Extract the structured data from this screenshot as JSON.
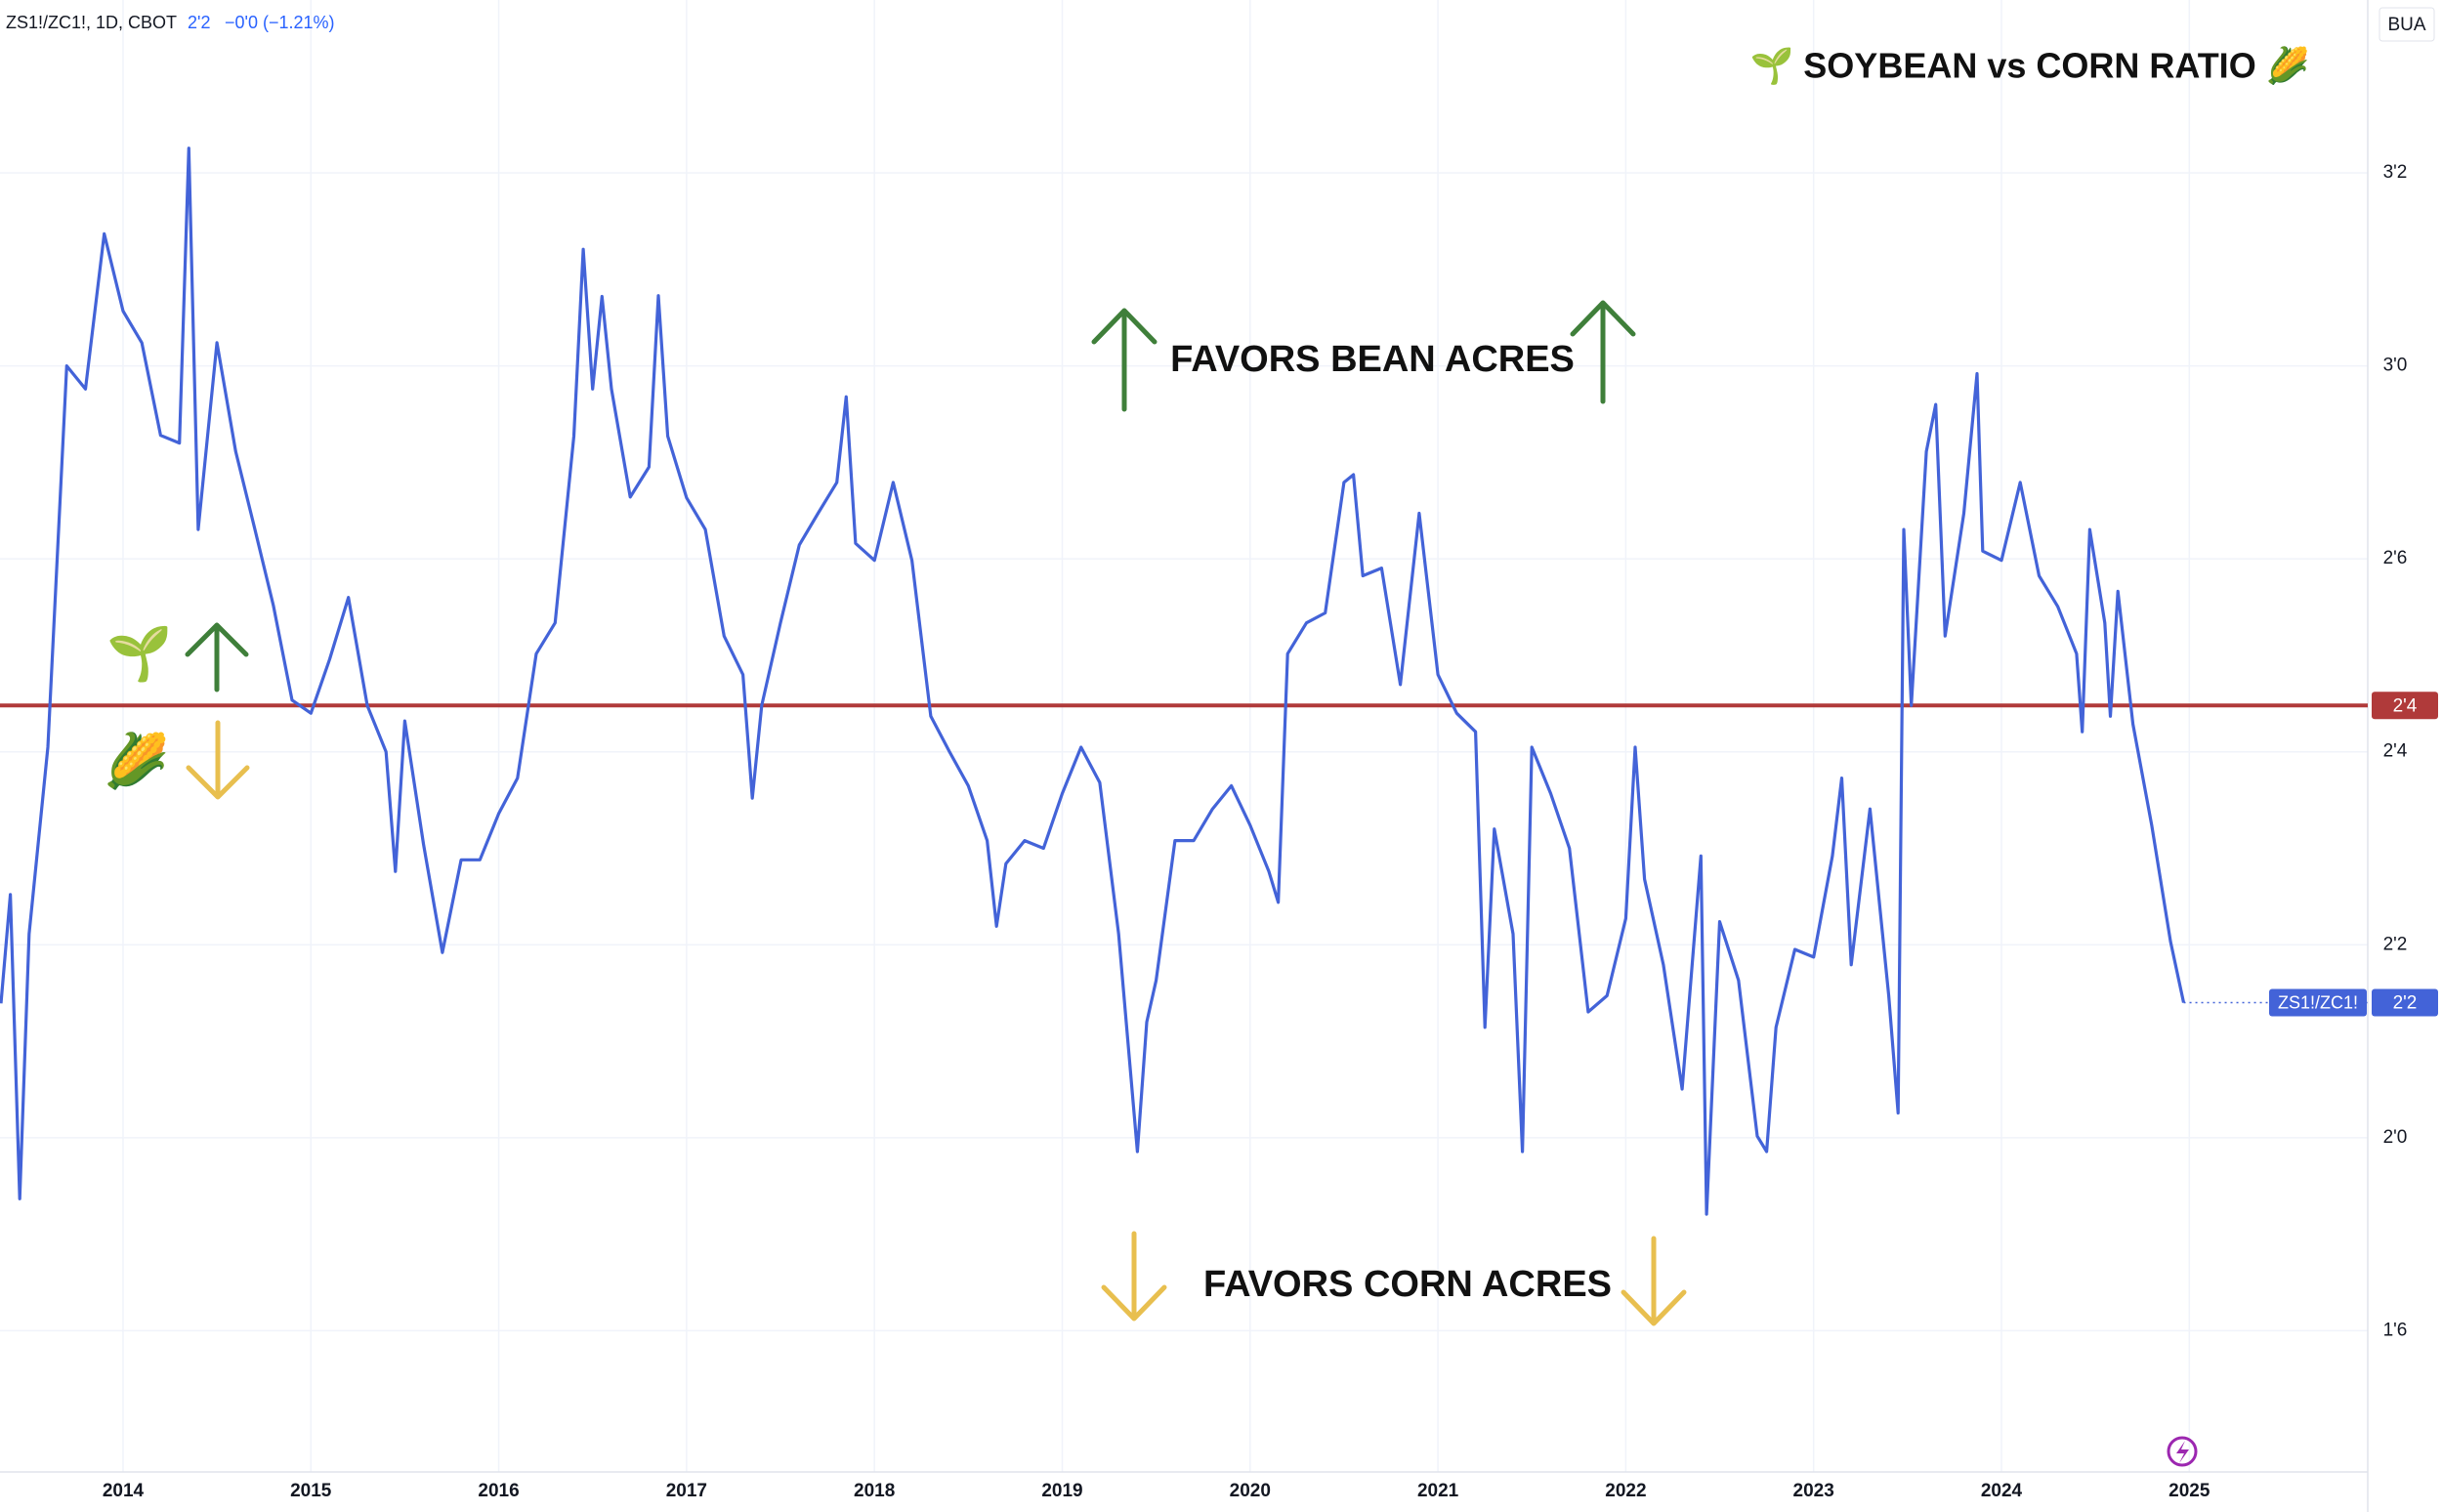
{
  "chart_data": {
    "type": "line",
    "title": "🌱 SOYBEAN vs CORN RATIO 🌽",
    "header": {
      "symbol_info": "ZS1!/ZC1!, 1D, CBOT",
      "change": "−0'0 (−1.21%)"
    },
    "badge": "BUA",
    "symbol": "ZS1!/ZC1!",
    "annotations": {
      "bean": "FAVORS BEAN ACRES",
      "corn": "FAVORS CORN ACRES",
      "bean_icon": "🌱",
      "corn_icon": "🌽"
    },
    "color": "#4363d8",
    "grid": true,
    "xlim": [
      2013.345,
      2025.95
    ],
    "ylim": [
      1.567,
      3.474
    ],
    "xticks": [
      2014,
      2015,
      2016,
      2017,
      2018,
      2019,
      2020,
      2021,
      2022,
      2023,
      2024,
      2025
    ],
    "yticks": [
      {
        "value": 1.75,
        "label": "1'6"
      },
      {
        "value": 2.0,
        "label": "2'0"
      },
      {
        "value": 2.25,
        "label": "2'2"
      },
      {
        "value": 2.5,
        "label": "2'4"
      },
      {
        "value": 2.75,
        "label": "2'6"
      },
      {
        "value": 3.0,
        "label": "3'0"
      },
      {
        "value": 3.25,
        "label": "3'2"
      }
    ],
    "reference_line": {
      "value": 2.56,
      "label": "2'4",
      "color": "#b03a3a"
    },
    "last_price": {
      "value": 2.175,
      "label": "2'2"
    },
    "x": [
      2013.35,
      2013.4,
      2013.45,
      2013.5,
      2013.6,
      2013.7,
      2013.8,
      2013.9,
      2014.0,
      2014.1,
      2014.2,
      2014.3,
      2014.35,
      2014.4,
      2014.5,
      2014.6,
      2014.7,
      2014.8,
      2014.9,
      2015.0,
      2015.1,
      2015.2,
      2015.3,
      2015.4,
      2015.45,
      2015.5,
      2015.6,
      2015.7,
      2015.8,
      2015.9,
      2016.0,
      2016.1,
      2016.2,
      2016.3,
      2016.4,
      2016.45,
      2016.5,
      2016.55,
      2016.6,
      2016.7,
      2016.8,
      2016.85,
      2016.9,
      2017.0,
      2017.1,
      2017.2,
      2017.3,
      2017.35,
      2017.4,
      2017.5,
      2017.6,
      2017.7,
      2017.8,
      2017.85,
      2017.9,
      2018.0,
      2018.1,
      2018.2,
      2018.3,
      2018.4,
      2018.5,
      2018.6,
      2018.65,
      2018.7,
      2018.8,
      2018.9,
      2019.0,
      2019.1,
      2019.2,
      2019.3,
      2019.4,
      2019.45,
      2019.5,
      2019.6,
      2019.7,
      2019.8,
      2019.9,
      2020.0,
      2020.1,
      2020.15,
      2020.2,
      2020.3,
      2020.4,
      2020.5,
      2020.55,
      2020.6,
      2020.7,
      2020.8,
      2020.9,
      2021.0,
      2021.1,
      2021.2,
      2021.25,
      2021.3,
      2021.4,
      2021.45,
      2021.5,
      2021.6,
      2021.7,
      2021.8,
      2021.9,
      2022.0,
      2022.05,
      2022.1,
      2022.2,
      2022.3,
      2022.4,
      2022.43,
      2022.5,
      2022.6,
      2022.7,
      2022.75,
      2022.8,
      2022.9,
      2023.0,
      2023.1,
      2023.15,
      2023.2,
      2023.3,
      2023.4,
      2023.45,
      2023.48,
      2023.52,
      2023.6,
      2023.65,
      2023.7,
      2023.8,
      2023.87,
      2023.9,
      2024.0,
      2024.1,
      2024.2,
      2024.3,
      2024.4,
      2024.43,
      2024.47,
      2024.55,
      2024.58,
      2024.62,
      2024.7,
      2024.8,
      2024.9,
      2024.97
    ],
    "values": [
      2.174,
      2.315,
      1.921,
      2.264,
      2.506,
      3.0,
      2.97,
      3.171,
      3.071,
      3.03,
      2.91,
      2.9,
      3.282,
      2.788,
      3.03,
      2.889,
      2.79,
      2.69,
      2.567,
      2.55,
      2.62,
      2.7,
      2.56,
      2.5,
      2.345,
      2.54,
      2.38,
      2.24,
      2.36,
      2.36,
      2.42,
      2.466,
      2.627,
      2.667,
      2.909,
      3.151,
      2.97,
      3.09,
      2.97,
      2.83,
      2.869,
      3.091,
      2.909,
      2.829,
      2.788,
      2.65,
      2.6,
      2.44,
      2.56,
      2.667,
      2.768,
      2.809,
      2.849,
      2.96,
      2.77,
      2.748,
      2.849,
      2.748,
      2.546,
      2.5,
      2.456,
      2.385,
      2.274,
      2.355,
      2.385,
      2.375,
      2.446,
      2.506,
      2.46,
      2.264,
      1.982,
      2.15,
      2.204,
      2.385,
      2.385,
      2.426,
      2.456,
      2.405,
      2.345,
      2.305,
      2.627,
      2.667,
      2.68,
      2.849,
      2.859,
      2.728,
      2.738,
      2.587,
      2.809,
      2.6,
      2.55,
      2.526,
      2.143,
      2.4,
      2.264,
      1.982,
      2.506,
      2.446,
      2.375,
      2.163,
      2.184,
      2.284,
      2.506,
      2.335,
      2.224,
      2.063,
      2.365,
      1.901,
      2.28,
      2.204,
      2.002,
      1.982,
      2.143,
      2.244,
      2.234,
      2.365,
      2.466,
      2.224,
      2.426,
      2.184,
      2.032,
      2.788,
      2.56,
      2.889,
      2.95,
      2.65,
      2.809,
      2.99,
      2.76,
      2.748,
      2.849,
      2.728,
      2.688,
      2.627,
      2.526,
      2.788,
      2.667,
      2.546,
      2.708,
      2.536,
      2.405,
      2.254,
      2.175
    ]
  }
}
